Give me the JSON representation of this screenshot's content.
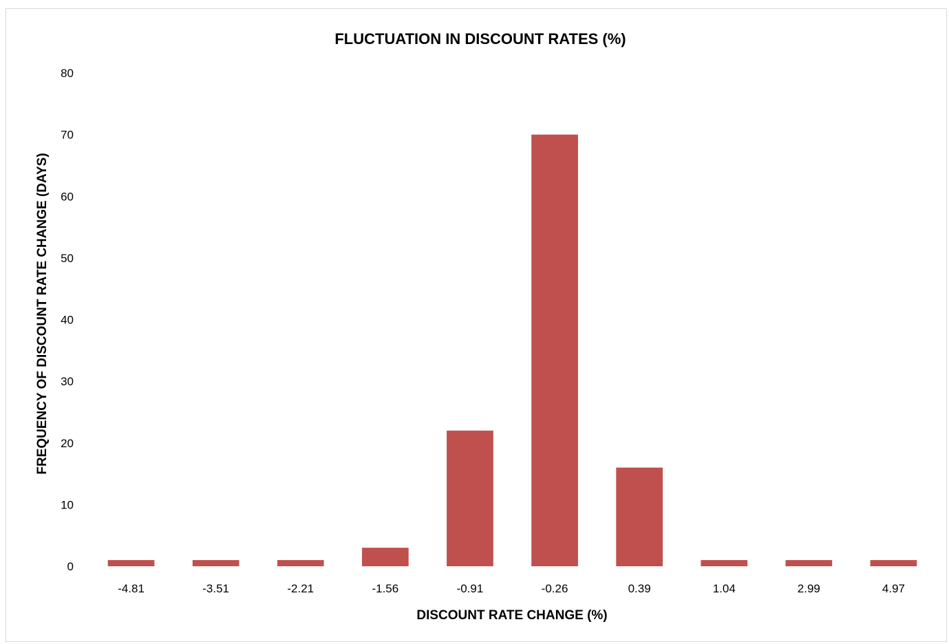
{
  "chart_data": {
    "type": "bar",
    "title": "FLUCTUATION IN DISCOUNT RATES (%)",
    "xlabel": "DISCOUNT RATE CHANGE (%)",
    "ylabel": "FREQUENCY OF DISCOUNT RATE CHANGE  (DAYS)",
    "categories": [
      "-4.81",
      "-3.51",
      "-2.21",
      "-1.56",
      "-0.91",
      "-0.26",
      "0.39",
      "1.04",
      "2.99",
      "4.97"
    ],
    "values": [
      1,
      1,
      1,
      3,
      22,
      70,
      16,
      1,
      1,
      1
    ],
    "ylim": [
      0,
      80
    ],
    "yticks": [
      0,
      10,
      20,
      30,
      40,
      50,
      60,
      70,
      80
    ],
    "grid": false,
    "legend": "none",
    "bar_color": "#C0504D"
  }
}
